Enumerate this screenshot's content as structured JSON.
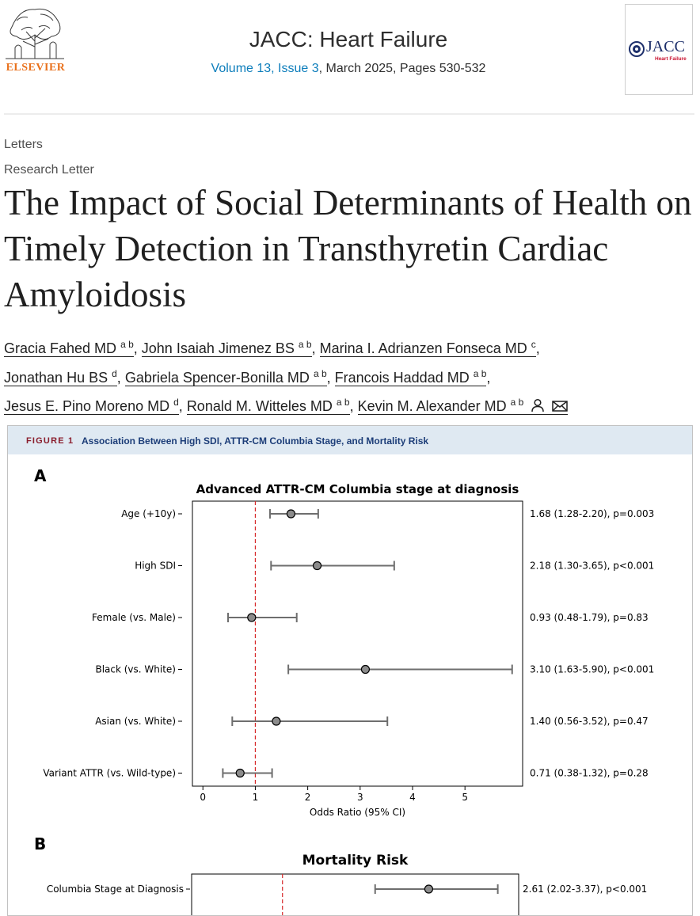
{
  "header": {
    "publisher": "ELSEVIER",
    "journal_title": "JACC: Heart Failure",
    "issue_link": "Volume 13, Issue 3",
    "issue_rest": ", March 2025, Pages 530-532",
    "cover_title": "JACC",
    "cover_subtitle": "Heart Failure"
  },
  "breadcrumbs": [
    "Letters",
    "Research Letter"
  ],
  "article": {
    "title": "The Impact of Social Determinants of Health on Timely Detection in Transthyretin Cardiac Amyloidosis",
    "authors": [
      {
        "name": "Gracia Fahed MD",
        "aff": "a b"
      },
      {
        "name": "John Isaiah Jimenez BS",
        "aff": "a b"
      },
      {
        "name": "Marina I. Adrianzen Fonseca MD",
        "aff": "c"
      },
      {
        "name": "Jonathan Hu BS",
        "aff": "d"
      },
      {
        "name": "Gabriela Spencer-Bonilla MD",
        "aff": "a b"
      },
      {
        "name": "Francois Haddad MD",
        "aff": "a b"
      },
      {
        "name": "Jesus E. Pino Moreno MD",
        "aff": "d"
      },
      {
        "name": "Ronald M. Witteles MD",
        "aff": "a b"
      },
      {
        "name": "Kevin M. Alexander MD",
        "aff": "a b"
      }
    ],
    "corresponding_icons": [
      "person-icon",
      "envelope-icon"
    ]
  },
  "figure": {
    "label": "FIGURE 1",
    "caption": "Association Between High SDI, ATTR-CM Columbia Stage, and Mortality Risk",
    "colors": {
      "header_bg": "#dfe9f2",
      "label": "#8a1d2c",
      "caption": "#1c3d78",
      "ref_line": "#d62728",
      "marker": "#8c8c8c"
    }
  },
  "chart_data": [
    {
      "type": "forest",
      "panel": "A",
      "title": "Advanced ATTR-CM Columbia stage at diagnosis",
      "xlabel": "Odds Ratio (95% CI)",
      "xlim": [
        -0.2,
        6.1
      ],
      "xticks": [
        0,
        1,
        2,
        3,
        4,
        5
      ],
      "reference_line": 1,
      "rows": [
        {
          "label": "Age (+10y)",
          "estimate": 1.68,
          "lower": 1.28,
          "upper": 2.2,
          "text": "1.68 (1.28-2.20), p=0.003"
        },
        {
          "label": "High SDI",
          "estimate": 2.18,
          "lower": 1.3,
          "upper": 3.65,
          "text": "2.18 (1.30-3.65), p<0.001"
        },
        {
          "label": "Female (vs. Male)",
          "estimate": 0.93,
          "lower": 0.48,
          "upper": 1.79,
          "text": "0.93 (0.48-1.79), p=0.83"
        },
        {
          "label": "Black (vs. White)",
          "estimate": 3.1,
          "lower": 1.63,
          "upper": 5.9,
          "text": "3.10 (1.63-5.90), p<0.001"
        },
        {
          "label": "Asian (vs. White)",
          "estimate": 1.4,
          "lower": 0.56,
          "upper": 3.52,
          "text": "1.40 (0.56-3.52), p=0.47"
        },
        {
          "label": "Variant ATTR (vs. Wild-type)",
          "estimate": 0.71,
          "lower": 0.38,
          "upper": 1.32,
          "text": "0.71 (0.38-1.32), p=0.28"
        }
      ]
    },
    {
      "type": "forest",
      "panel": "B",
      "title": "Mortality Risk",
      "xlim": [
        0.0,
        3.6
      ],
      "reference_line": 1,
      "rows": [
        {
          "label": "Columbia Stage at Diagnosis",
          "estimate": 2.61,
          "lower": 2.02,
          "upper": 3.37,
          "text": "2.61 (2.02-3.37), p<0.001"
        }
      ]
    }
  ]
}
